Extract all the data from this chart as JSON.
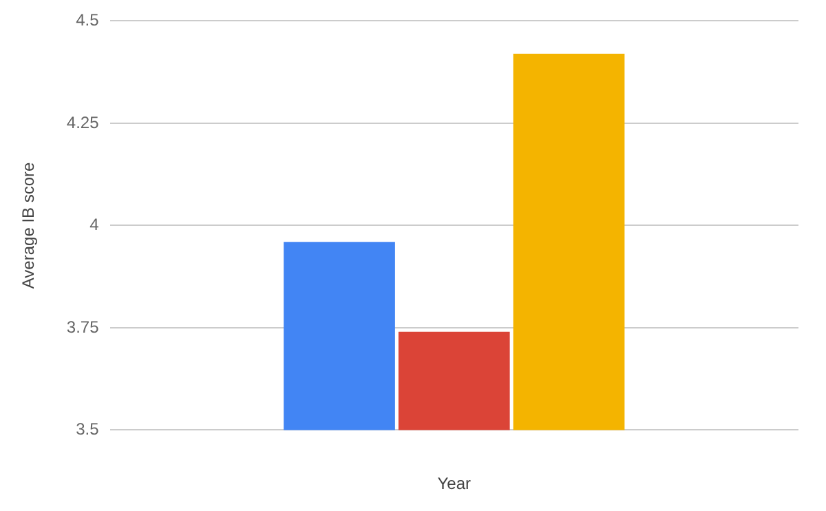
{
  "chart_data": {
    "type": "bar",
    "xlabel": "Year",
    "ylabel": "Average IB score",
    "categories": [
      null
    ],
    "series": [
      {
        "color": "#4285f4",
        "values": [
          3.96
        ]
      },
      {
        "color": "#db4437",
        "values": [
          3.74
        ]
      },
      {
        "color": "#f4b400",
        "values": [
          4.42
        ]
      }
    ],
    "ylim": [
      3.5,
      4.5
    ],
    "yticks": [
      3.5,
      3.75,
      4,
      4.25,
      4.5
    ],
    "grid": "y",
    "legend": false
  }
}
